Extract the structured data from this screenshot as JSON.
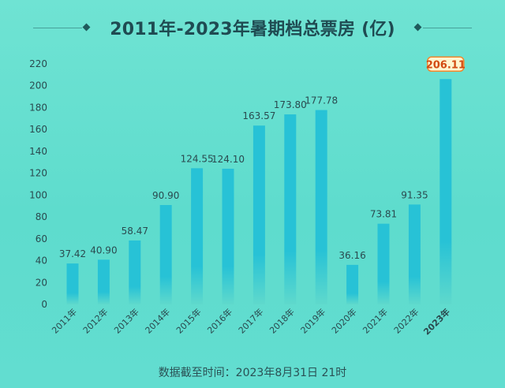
{
  "title": "2011年-2023年暑期档总票房 (亿)",
  "footer": "数据截至时间：2023年8月31日  21时",
  "colors": {
    "bar_top": "#27c2d6",
    "bar_bottom": "#5fd9cc",
    "highlight_fill": "#fff6cf",
    "highlight_stroke": "#f2872c",
    "highlight_text": "#d24b12",
    "text": "#2a4a4f"
  },
  "chart_data": {
    "type": "bar",
    "categories": [
      "2011年",
      "2012年",
      "2013年",
      "2014年",
      "2015年",
      "2016年",
      "2017年",
      "2018年",
      "2019年",
      "2020年",
      "2021年",
      "2022年",
      "2023年"
    ],
    "values": [
      37.42,
      40.9,
      58.47,
      90.9,
      124.55,
      124.1,
      163.57,
      173.8,
      177.78,
      36.16,
      73.81,
      91.35,
      206.11
    ],
    "value_labels": [
      "37.42",
      "40.90",
      "58.47",
      "90.90",
      "124.55",
      "124.10",
      "163.57",
      "173.80",
      "177.78",
      "36.16",
      "73.81",
      "91.35",
      "206.11"
    ],
    "y_ticks": [
      0,
      20,
      40,
      60,
      80,
      100,
      120,
      140,
      160,
      180,
      200,
      220
    ],
    "ylim": [
      0,
      220
    ],
    "highlight_category": "2023年",
    "grid": false
  }
}
